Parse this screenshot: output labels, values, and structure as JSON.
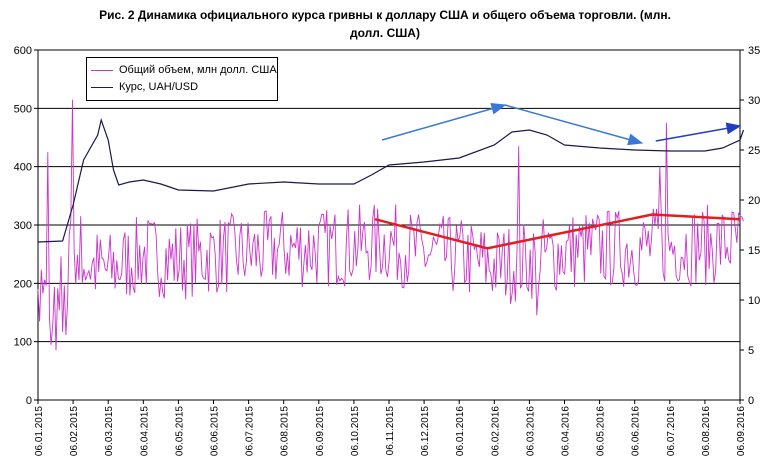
{
  "title_line1": "Рис. 2 Динамика официального курса гривны к доллару США и общего объема торговли. (млн.",
  "title_line2": "долл. США)",
  "chart_data": {
    "type": "line",
    "title": "Рис. 2 Динамика официального курса гривны к доллару США и общего объема торговли. (млн. долл. США)",
    "x_tick_labels": [
      "06.01.2015",
      "06.02.2015",
      "06.03.2015",
      "06.04.2015",
      "06.05.2015",
      "06.06.2015",
      "06.07.2015",
      "06.08.2015",
      "06.09.2015",
      "06.10.2015",
      "06.11.2015",
      "06.12.2015",
      "06.01.2016",
      "06.02.2016",
      "06.03.2016",
      "06.04.2016",
      "06.05.2016",
      "06.06.2016",
      "06.07.2016",
      "06.08.2016",
      "06.09.2016"
    ],
    "y_left": {
      "label": "",
      "ylim": [
        0,
        600
      ],
      "ticks": [
        0,
        100,
        200,
        300,
        400,
        500,
        600
      ]
    },
    "y_right": {
      "label": "",
      "ylim": [
        0,
        35
      ],
      "ticks": [
        0,
        5,
        10,
        15,
        20,
        25,
        30,
        35
      ]
    },
    "gridlines": true,
    "legend_position": "top-left",
    "series": [
      {
        "name": "Общий объем, млн долл. США",
        "axis": "left",
        "color": "#cc33cc",
        "approx_trend": [
          {
            "x": 0.0,
            "y": 210
          },
          {
            "x": 0.5,
            "y": 90
          },
          {
            "x": 1.0,
            "y": 250
          },
          {
            "x": 1.5,
            "y": 230
          },
          {
            "x": 2.0,
            "y": 220
          },
          {
            "x": 3.0,
            "y": 250
          },
          {
            "x": 4.0,
            "y": 240
          },
          {
            "x": 5.0,
            "y": 250
          },
          {
            "x": 6.0,
            "y": 250
          },
          {
            "x": 7.0,
            "y": 260
          },
          {
            "x": 8.0,
            "y": 260
          },
          {
            "x": 9.0,
            "y": 265
          },
          {
            "x": 10.0,
            "y": 270
          },
          {
            "x": 11.0,
            "y": 250
          },
          {
            "x": 12.0,
            "y": 245
          },
          {
            "x": 13.0,
            "y": 230
          },
          {
            "x": 14.0,
            "y": 240
          },
          {
            "x": 15.0,
            "y": 255
          },
          {
            "x": 16.0,
            "y": 260
          },
          {
            "x": 17.0,
            "y": 260
          },
          {
            "x": 18.0,
            "y": 265
          },
          {
            "x": 19.0,
            "y": 265
          },
          {
            "x": 20.0,
            "y": 270
          }
        ],
        "spikes": [
          {
            "x": 1.0,
            "y": 515
          },
          {
            "x": 0.3,
            "y": 425
          },
          {
            "x": 0.5,
            "y": 85
          },
          {
            "x": 13.7,
            "y": 435
          },
          {
            "x": 14.2,
            "y": 145
          },
          {
            "x": 17.9,
            "y": 475
          },
          {
            "x": 17.7,
            "y": 400
          }
        ]
      },
      {
        "name": "Курс, UAH/USD",
        "axis": "right",
        "color": "#1a1a4d",
        "values": [
          {
            "x": 0.0,
            "y": 15.8
          },
          {
            "x": 0.7,
            "y": 15.9
          },
          {
            "x": 1.0,
            "y": 19.5
          },
          {
            "x": 1.3,
            "y": 24.0
          },
          {
            "x": 1.7,
            "y": 26.5
          },
          {
            "x": 1.8,
            "y": 28.0
          },
          {
            "x": 2.0,
            "y": 26.0
          },
          {
            "x": 2.15,
            "y": 23.0
          },
          {
            "x": 2.3,
            "y": 21.5
          },
          {
            "x": 2.6,
            "y": 21.8
          },
          {
            "x": 3.0,
            "y": 22.0
          },
          {
            "x": 3.5,
            "y": 21.6
          },
          {
            "x": 4.0,
            "y": 21.0
          },
          {
            "x": 5.0,
            "y": 20.9
          },
          {
            "x": 6.0,
            "y": 21.6
          },
          {
            "x": 7.0,
            "y": 21.8
          },
          {
            "x": 8.0,
            "y": 21.6
          },
          {
            "x": 9.0,
            "y": 21.6
          },
          {
            "x": 9.5,
            "y": 22.5
          },
          {
            "x": 10.0,
            "y": 23.5
          },
          {
            "x": 11.0,
            "y": 23.8
          },
          {
            "x": 12.0,
            "y": 24.2
          },
          {
            "x": 13.0,
            "y": 25.5
          },
          {
            "x": 13.5,
            "y": 26.8
          },
          {
            "x": 14.0,
            "y": 27.0
          },
          {
            "x": 14.5,
            "y": 26.5
          },
          {
            "x": 15.0,
            "y": 25.5
          },
          {
            "x": 16.0,
            "y": 25.2
          },
          {
            "x": 17.0,
            "y": 25.0
          },
          {
            "x": 18.0,
            "y": 24.9
          },
          {
            "x": 19.0,
            "y": 24.9
          },
          {
            "x": 19.5,
            "y": 25.2
          },
          {
            "x": 20.0,
            "y": 26.0
          },
          {
            "x": 20.1,
            "y": 27.0
          }
        ]
      }
    ],
    "annotations": [
      {
        "type": "arrow",
        "color": "#3a78d8",
        "from": {
          "x": 9.8,
          "y_right": 26.0
        },
        "to": {
          "x": 13.3,
          "y_right": 29.5
        }
      },
      {
        "type": "arrow",
        "color": "#3a78d8",
        "from": {
          "x": 13.3,
          "y_right": 29.5
        },
        "to": {
          "x": 17.2,
          "y_right": 25.7
        }
      },
      {
        "type": "arrow",
        "color": "#1f3fbf",
        "from": {
          "x": 17.6,
          "y_right": 25.9
        },
        "to": {
          "x": 20.0,
          "y_right": 27.4
        }
      },
      {
        "type": "trend_line",
        "color": "#e02020",
        "points": [
          {
            "x": 9.6,
            "y_left": 310
          },
          {
            "x": 12.8,
            "y_left": 260
          },
          {
            "x": 17.5,
            "y_left": 318
          },
          {
            "x": 20.0,
            "y_left": 310
          }
        ]
      }
    ]
  }
}
